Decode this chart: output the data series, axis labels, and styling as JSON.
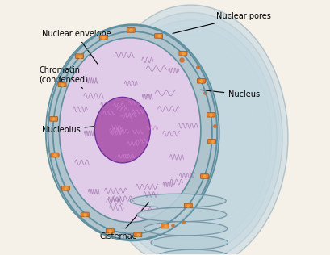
{
  "colors": {
    "bg_color": "#f5f0e8",
    "outer_er": "#a8bfcc",
    "er_fill": "#c5d8e0",
    "er_dark": "#8faab8",
    "nuclear_space": "#b0c4ce",
    "nucleus_light": "#e0cce8",
    "nucleolus_fill": "#b060b0",
    "chromatin_lines": "#9060a0",
    "pore_orange": "#e08030",
    "pore_center": "#f0a040",
    "envelope_line": "#6090a0",
    "dot_orange": "#d07030",
    "cisternae_fill": "#b8cfd8",
    "cisternae_stroke": "#7090a0"
  },
  "labels": {
    "nuclear_envelope": "Nuclear envelope",
    "chromatin": "Chromatin\n(condensed)",
    "nucleolus": "Nucleolus",
    "nuclear_pores": "Nuclear pores",
    "nucleus": "Nucleus",
    "cisternae": "Cisternae"
  }
}
